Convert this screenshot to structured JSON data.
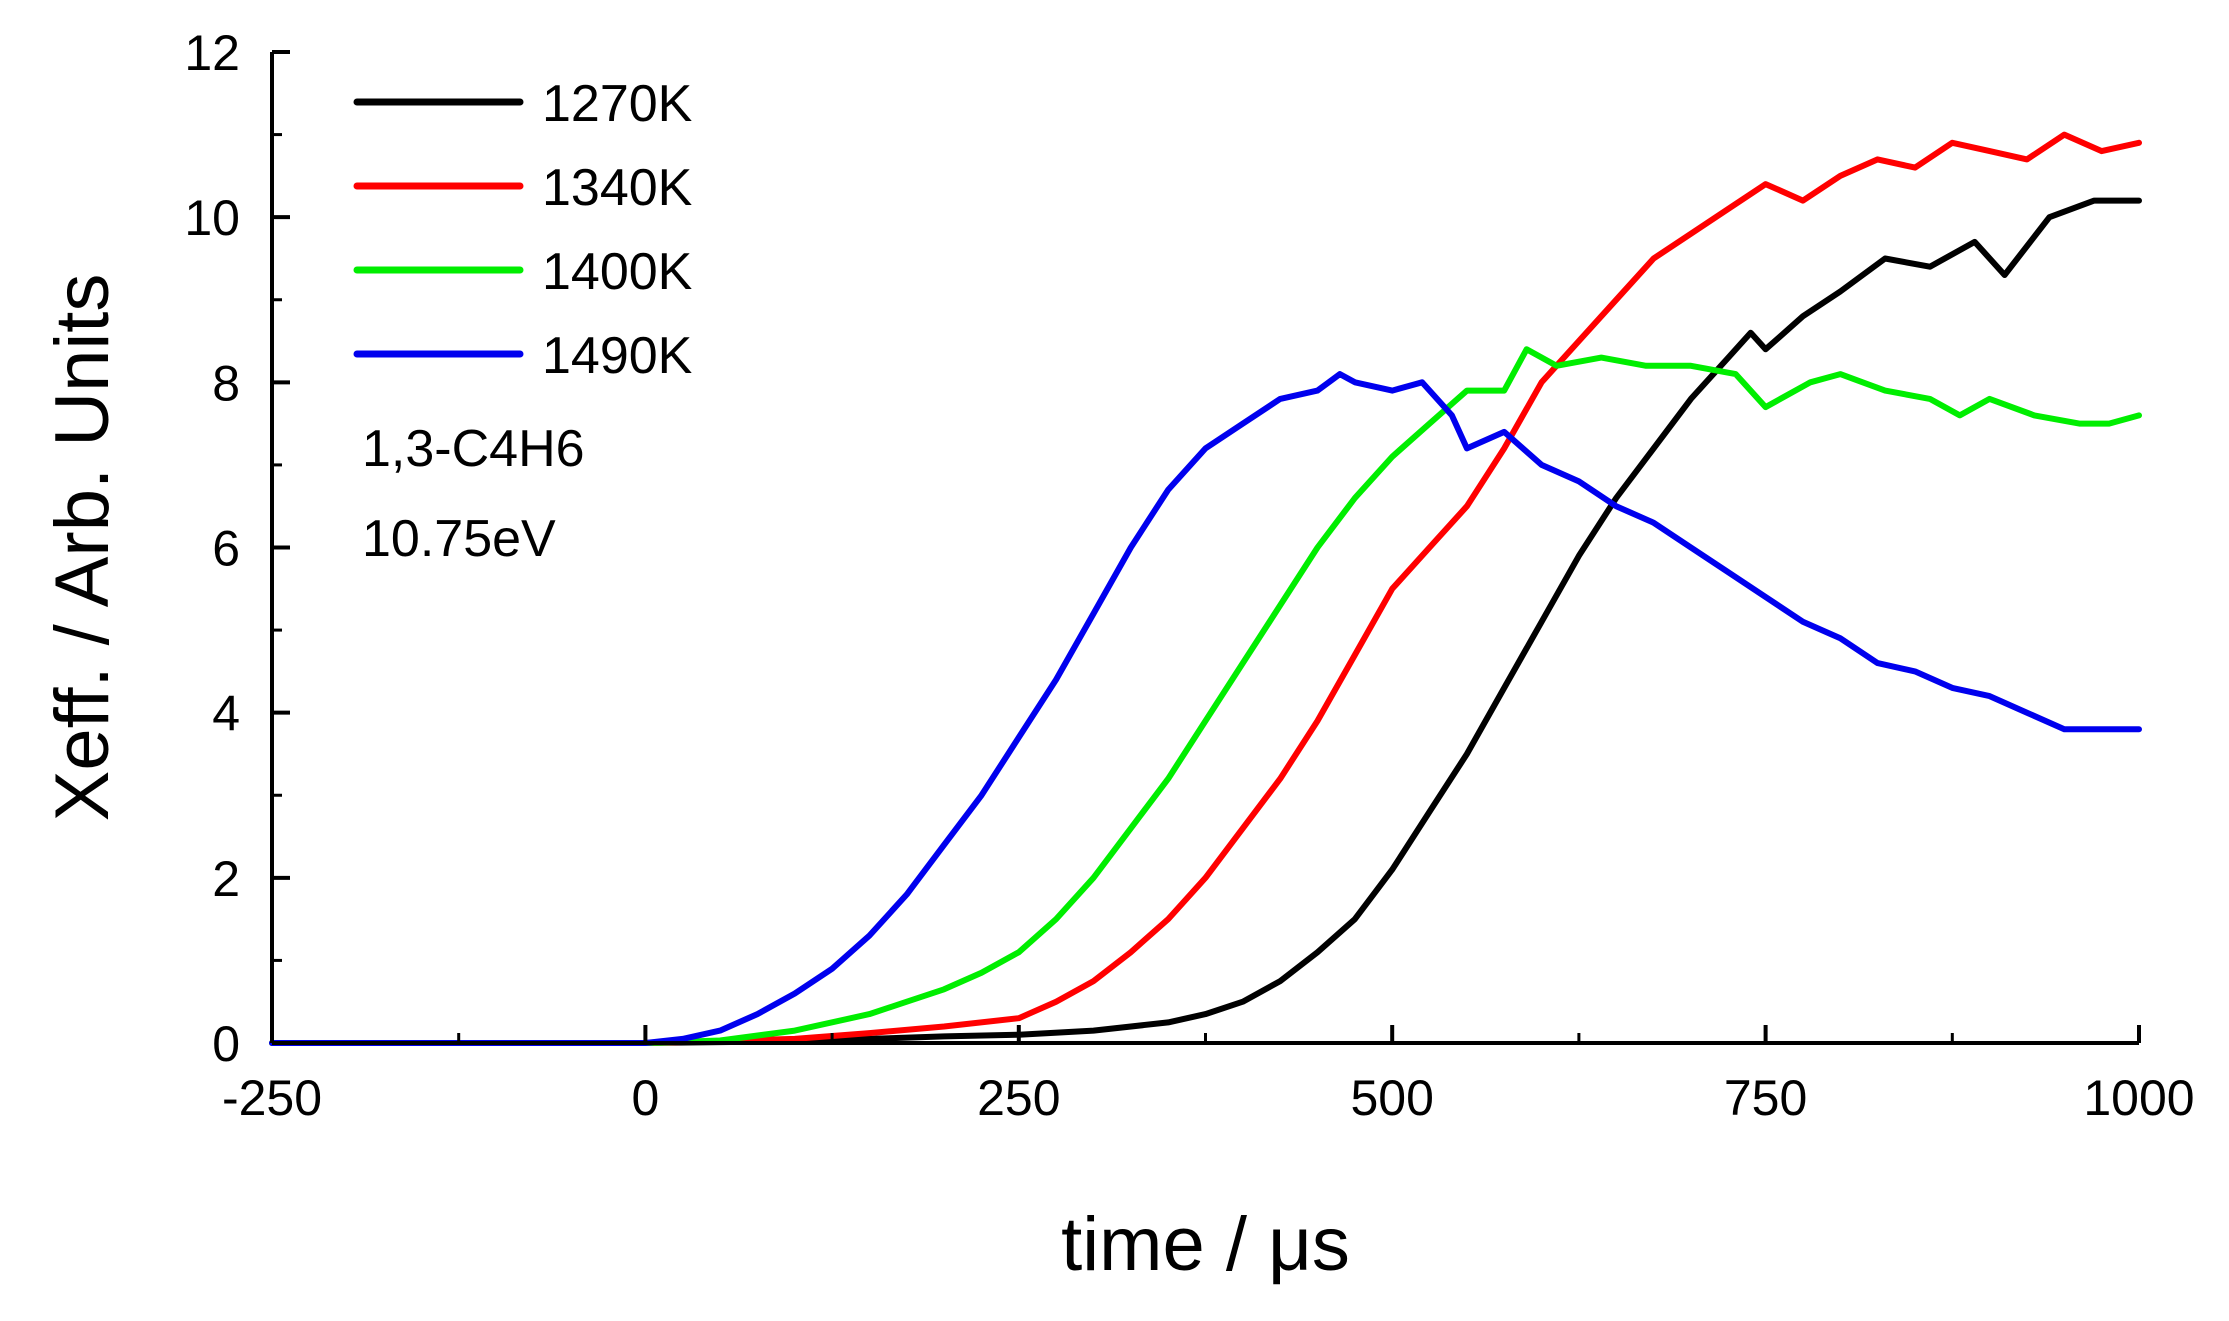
{
  "chart_data": {
    "type": "line",
    "title": "",
    "xlabel": "time / μs",
    "ylabel": "Xeff. / Arb. Units",
    "xlim": [
      -250,
      1000
    ],
    "ylim": [
      0,
      12
    ],
    "xticks": [
      -250,
      0,
      250,
      500,
      750,
      1000
    ],
    "yticks": [
      0,
      2,
      4,
      6,
      8,
      10,
      12
    ],
    "x_tick_labels": [
      "-250",
      "0",
      "250",
      "500",
      "750",
      "1000"
    ],
    "y_tick_labels": [
      "0",
      "2",
      "4",
      "6",
      "8",
      "10",
      "12"
    ],
    "grid": false,
    "legend_position": "top-left",
    "annotations": [
      "1,3-C4H6",
      "10.75eV"
    ],
    "series": [
      {
        "name": "1270K",
        "color": "#000000",
        "x": [
          -250,
          -100,
          0,
          100,
          150,
          200,
          250,
          300,
          350,
          375,
          400,
          425,
          450,
          475,
          500,
          525,
          550,
          575,
          600,
          625,
          650,
          675,
          700,
          725,
          740,
          750,
          775,
          800,
          830,
          860,
          890,
          910,
          940,
          970,
          1000
        ],
        "y": [
          0,
          0,
          0,
          0.02,
          0.05,
          0.08,
          0.1,
          0.15,
          0.25,
          0.35,
          0.5,
          0.75,
          1.1,
          1.5,
          2.1,
          2.8,
          3.5,
          4.3,
          5.1,
          5.9,
          6.6,
          7.2,
          7.8,
          8.3,
          8.6,
          8.4,
          8.8,
          9.1,
          9.5,
          9.4,
          9.7,
          9.3,
          10.0,
          10.2,
          10.2
        ]
      },
      {
        "name": "1340K",
        "color": "#ff0000",
        "x": [
          -250,
          -100,
          0,
          100,
          150,
          200,
          250,
          275,
          300,
          325,
          350,
          375,
          400,
          425,
          450,
          475,
          500,
          525,
          550,
          575,
          600,
          625,
          650,
          675,
          700,
          725,
          750,
          775,
          800,
          825,
          850,
          875,
          900,
          925,
          950,
          975,
          1000
        ],
        "y": [
          0,
          0,
          0,
          0.05,
          0.12,
          0.2,
          0.3,
          0.5,
          0.75,
          1.1,
          1.5,
          2.0,
          2.6,
          3.2,
          3.9,
          4.7,
          5.5,
          6.0,
          6.5,
          7.2,
          8.0,
          8.5,
          9.0,
          9.5,
          9.8,
          10.1,
          10.4,
          10.2,
          10.5,
          10.7,
          10.6,
          10.9,
          10.8,
          10.7,
          11.0,
          10.8,
          10.9
        ]
      },
      {
        "name": "1400K",
        "color": "#00ee00",
        "x": [
          -250,
          -100,
          0,
          50,
          100,
          150,
          175,
          200,
          225,
          250,
          275,
          300,
          325,
          350,
          375,
          400,
          425,
          450,
          475,
          500,
          525,
          550,
          575,
          590,
          610,
          640,
          670,
          700,
          730,
          750,
          780,
          800,
          830,
          860,
          880,
          900,
          930,
          960,
          980,
          1000
        ],
        "y": [
          0,
          0,
          0,
          0.03,
          0.15,
          0.35,
          0.5,
          0.65,
          0.85,
          1.1,
          1.5,
          2.0,
          2.6,
          3.2,
          3.9,
          4.6,
          5.3,
          6.0,
          6.6,
          7.1,
          7.5,
          7.9,
          7.9,
          8.4,
          8.2,
          8.3,
          8.2,
          8.2,
          8.1,
          7.7,
          8.0,
          8.1,
          7.9,
          7.8,
          7.6,
          7.8,
          7.6,
          7.5,
          7.5,
          7.6
        ]
      },
      {
        "name": "1490K",
        "color": "#0000ee",
        "x": [
          -250,
          -100,
          0,
          25,
          50,
          75,
          100,
          125,
          150,
          175,
          200,
          225,
          250,
          275,
          300,
          325,
          350,
          375,
          400,
          425,
          450,
          465,
          475,
          500,
          520,
          540,
          550,
          575,
          600,
          625,
          650,
          675,
          700,
          725,
          750,
          775,
          800,
          825,
          850,
          875,
          900,
          925,
          950,
          975,
          1000
        ],
        "y": [
          0,
          0,
          0,
          0.05,
          0.15,
          0.35,
          0.6,
          0.9,
          1.3,
          1.8,
          2.4,
          3.0,
          3.7,
          4.4,
          5.2,
          6.0,
          6.7,
          7.2,
          7.5,
          7.8,
          7.9,
          8.1,
          8.0,
          7.9,
          8.0,
          7.6,
          7.2,
          7.4,
          7.0,
          6.8,
          6.5,
          6.3,
          6.0,
          5.7,
          5.4,
          5.1,
          4.9,
          4.6,
          4.5,
          4.3,
          4.2,
          4.0,
          3.8,
          3.8,
          3.8
        ]
      }
    ]
  }
}
